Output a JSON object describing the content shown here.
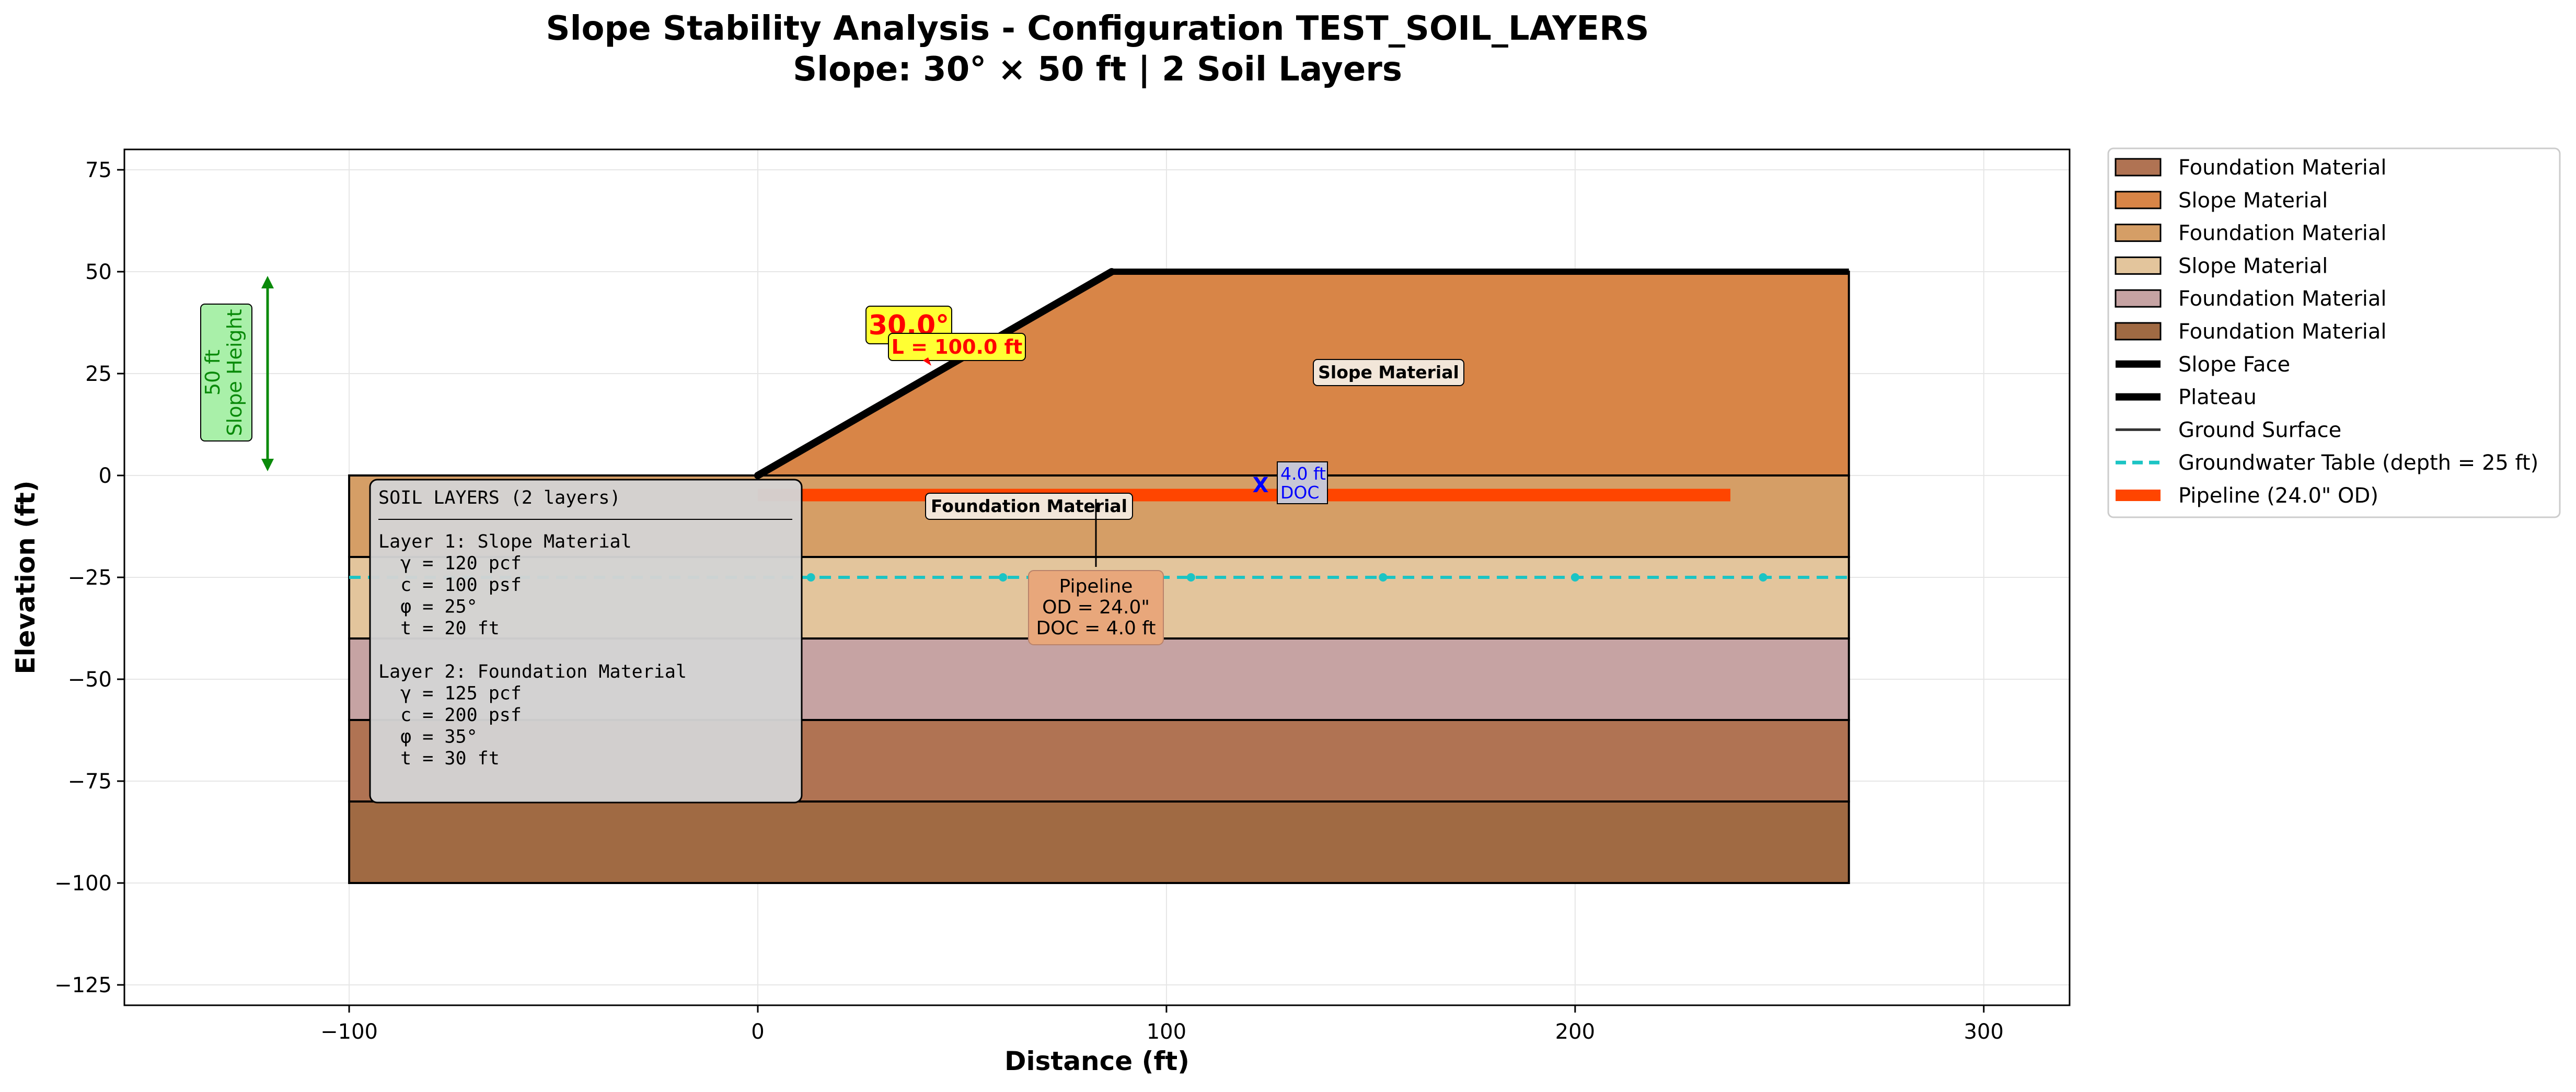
{
  "title": {
    "line1": "Slope Stability Analysis - Configuration TEST_SOIL_LAYERS",
    "line2": "Slope: 30° × 50 ft | 2 Soil Layers"
  },
  "axes": {
    "xlabel": "Distance (ft)",
    "ylabel": "Elevation (ft)",
    "xlim": [
      -155,
      321
    ],
    "ylim": [
      -130,
      80
    ],
    "xticks": [
      -100,
      0,
      100,
      200,
      300
    ],
    "xtick_labels": [
      "−100",
      "0",
      "100",
      "200",
      "300"
    ],
    "yticks": [
      75,
      50,
      25,
      0,
      -25,
      -50,
      -75,
      -100,
      -125
    ],
    "ytick_labels": [
      "75",
      "50",
      "25",
      "0",
      "−25",
      "−50",
      "−75",
      "−100",
      "−125"
    ],
    "grid": true
  },
  "colors": {
    "slope_material": "#d88547",
    "foundation_1": "#d59e66",
    "slope_2": "#e3c59c",
    "foundation_2": "#c6a3a3",
    "foundation_3": "#b07353",
    "foundation_4": "#a06a43",
    "groundwater": "#1bc4c4",
    "pipeline": "#ff4500",
    "slope_height": "#0a8a0a"
  },
  "chart_data": {
    "type": "diagram",
    "slope": {
      "angle_deg": 30,
      "height_ft": 50,
      "toe_x": 0,
      "crest_x": 86.6,
      "plateau_end_x": 267
    },
    "layers": [
      {
        "name": "Slope Material",
        "x": [
          0,
          267
        ],
        "top": 0,
        "bottom": 50
      },
      {
        "name": "Foundation Material",
        "x": [
          -100,
          267
        ],
        "top": 0,
        "bottom": -20
      },
      {
        "name": "Slope Material",
        "x": [
          -100,
          267
        ],
        "top": -20,
        "bottom": -40
      },
      {
        "name": "Foundation Material",
        "x": [
          -100,
          267
        ],
        "top": -40,
        "bottom": -60
      },
      {
        "name": "Foundation Material",
        "x": [
          -100,
          267
        ],
        "top": -60,
        "bottom": -80
      },
      {
        "name": "Foundation Material",
        "x": [
          -100,
          267
        ],
        "top": -80,
        "bottom": -100
      }
    ],
    "groundwater": {
      "elevation": -25,
      "x": [
        -100,
        267
      ],
      "markers": [
        13,
        60,
        106,
        153,
        200,
        246
      ]
    },
    "pipeline": {
      "elevation": -4.8,
      "x": [
        0,
        238
      ]
    },
    "doc_marker": {
      "x": 123,
      "y_top": 0,
      "y_bottom": -4
    }
  },
  "legend": {
    "items": [
      {
        "label": "Foundation Material",
        "kind": "patch",
        "color": "#b07353"
      },
      {
        "label": "Slope Material",
        "kind": "patch",
        "color": "#d88547"
      },
      {
        "label": "Foundation Material",
        "kind": "patch",
        "color": "#d59e66"
      },
      {
        "label": "Slope Material",
        "kind": "patch",
        "color": "#e3c59c"
      },
      {
        "label": "Foundation Material",
        "kind": "patch",
        "color": "#c6a3a3"
      },
      {
        "label": "Foundation Material",
        "kind": "patch",
        "color": "#a06a43"
      },
      {
        "label": "Slope Face",
        "kind": "line-thick",
        "color": "#000000"
      },
      {
        "label": "Plateau",
        "kind": "line-thick",
        "color": "#000000"
      },
      {
        "label": "Ground Surface",
        "kind": "line-thin",
        "color": "#333333"
      },
      {
        "label": "Groundwater Table (depth = 25 ft)",
        "kind": "line-dash",
        "color": "#1bc4c4"
      },
      {
        "label": "Pipeline (24.0\" OD)",
        "kind": "line-pipe",
        "color": "#ff4500"
      }
    ]
  },
  "annotations": {
    "slope_height_line1": "50 ft",
    "slope_height_line2": "Slope Height",
    "angle": "30.0°",
    "length": "L = 100.0 ft",
    "slope_material_label": "Slope Material",
    "foundation_material_label": "Foundation Material",
    "doc_x": "X",
    "doc_line1": "4.0 ft",
    "doc_line2": "DOC",
    "pipeline_line1": "Pipeline",
    "pipeline_line2": "OD = 24.0\"",
    "pipeline_line3": "DOC = 4.0 ft"
  },
  "soil_box": {
    "title": "SOIL LAYERS (2 layers)",
    "lines": [
      "Layer 1: Slope Material",
      "  γ = 120 pcf",
      "  c = 100 psf",
      "  φ = 25°",
      "  t = 20 ft",
      "",
      "Layer 2: Foundation Material",
      "  γ = 125 pcf",
      "  c = 200 psf",
      "  φ = 35°",
      "  t = 30 ft"
    ]
  }
}
